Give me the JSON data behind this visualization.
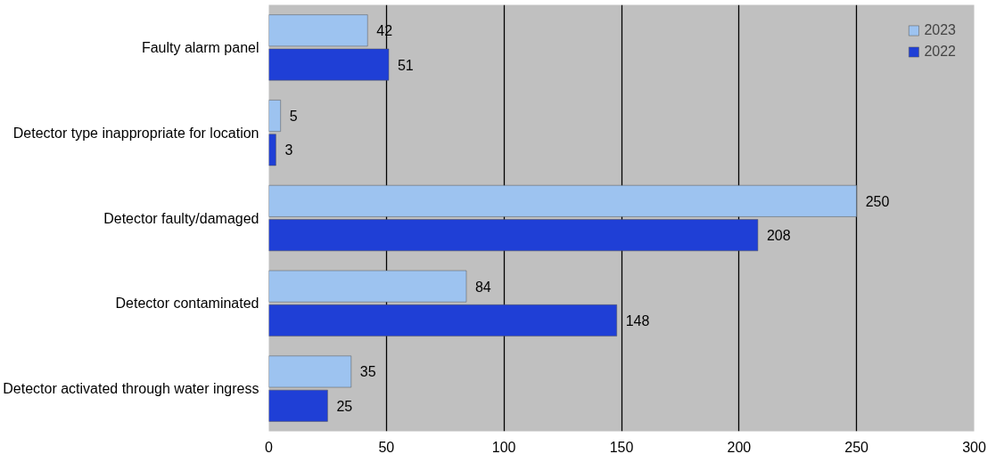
{
  "chart_data": {
    "type": "bar",
    "orientation": "horizontal",
    "categories": [
      "Faulty alarm panel",
      "Detector type inappropriate for location",
      "Detector faulty/damaged",
      "Detector contaminated",
      "Detector activated through water ingress"
    ],
    "series": [
      {
        "name": "2023",
        "color": "#9dc3f0",
        "values": [
          42,
          5,
          250,
          84,
          35
        ]
      },
      {
        "name": "2022",
        "color": "#1f3fd6",
        "values": [
          51,
          3,
          208,
          148,
          25
        ]
      }
    ],
    "xlim": [
      0,
      300
    ],
    "xticks": [
      0,
      50,
      100,
      150,
      200,
      250,
      300
    ],
    "grid": "x",
    "legend": "top right",
    "data_labels": true
  }
}
